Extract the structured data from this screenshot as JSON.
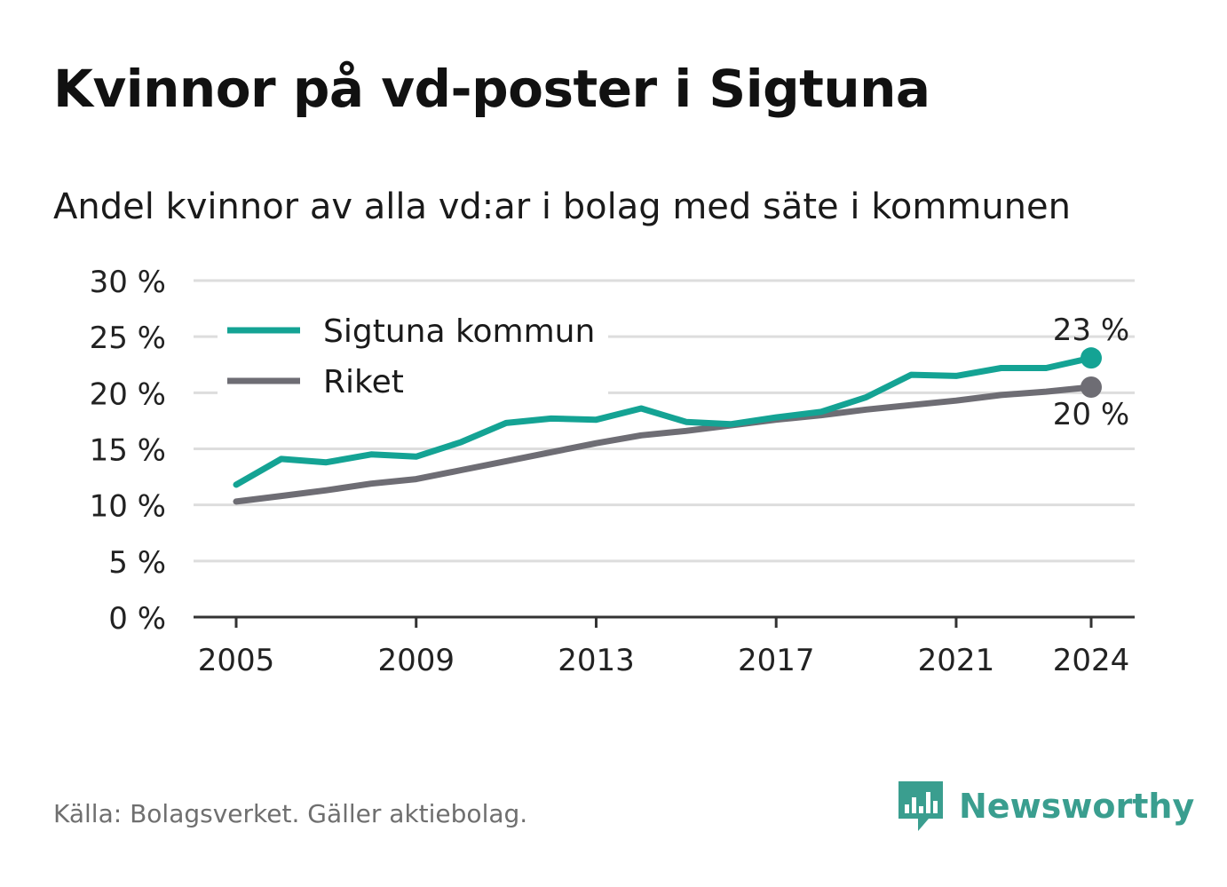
{
  "title": "Kvinnor på vd-poster i Sigtuna",
  "subtitle": "Andel kvinnor av alla vd:ar i bolag med säte i kommunen",
  "source": "Källa: Bolagsverket. Gäller aktiebolag.",
  "brand": {
    "name": "Newsworthy",
    "logo_icon": "newsworthy-chart-logo-icon",
    "color": "#3a9e8f"
  },
  "colors": {
    "sigtuna": "#14a394",
    "riket": "#6e6d74",
    "grid": "#dddddd",
    "axis": "#333333"
  },
  "chart_data": {
    "type": "line",
    "ylim": [
      0,
      30
    ],
    "y_ticks": [
      0,
      5,
      10,
      15,
      20,
      25,
      30
    ],
    "y_tick_labels": [
      "0 %",
      "5 %",
      "10 %",
      "15 %",
      "20 %",
      "25 %",
      "30 %"
    ],
    "x_ticks": [
      2005,
      2009,
      2013,
      2017,
      2021,
      2024
    ],
    "x_tick_labels": [
      "2005",
      "2009",
      "2013",
      "2017",
      "2021",
      "2024"
    ],
    "x": [
      2005,
      2006,
      2007,
      2008,
      2009,
      2010,
      2011,
      2012,
      2013,
      2014,
      2015,
      2016,
      2017,
      2018,
      2019,
      2020,
      2021,
      2022,
      2023,
      2024
    ],
    "grid": true,
    "legend_position": "top-left",
    "series": [
      {
        "name": "Sigtuna kommun",
        "color": "#14a394",
        "values": [
          11.8,
          14.1,
          13.8,
          14.5,
          14.3,
          15.6,
          17.3,
          17.7,
          17.6,
          18.6,
          17.4,
          17.2,
          17.8,
          18.3,
          19.6,
          21.6,
          21.5,
          22.2,
          22.2,
          23.1
        ],
        "end_label": "23 %"
      },
      {
        "name": "Riket",
        "color": "#6e6d74",
        "values": [
          10.3,
          10.8,
          11.3,
          11.9,
          12.3,
          13.1,
          13.9,
          14.7,
          15.5,
          16.2,
          16.6,
          17.1,
          17.6,
          18.0,
          18.5,
          18.9,
          19.3,
          19.8,
          20.1,
          20.5
        ],
        "end_label": "20 %"
      }
    ]
  }
}
